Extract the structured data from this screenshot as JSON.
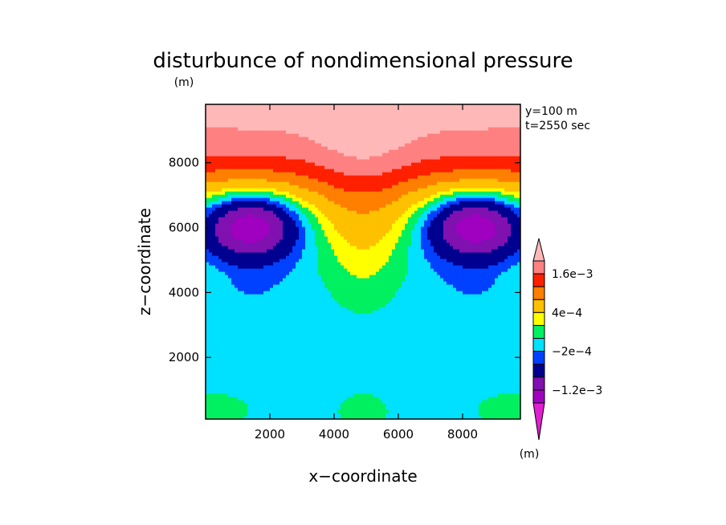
{
  "chart_data": {
    "type": "heatmap",
    "title": "disturbunce of nondimensional pressure",
    "xlabel": "x−coordinate",
    "ylabel": "z−coordinate",
    "y_unit": "(m)",
    "colorbar_unit": "(m)",
    "annotations": [
      "y=100 m",
      "t=2550 sec"
    ],
    "xlim": [
      0,
      9800
    ],
    "ylim": [
      100,
      9800
    ],
    "x_ticks": [
      2000,
      4000,
      6000,
      8000
    ],
    "x_tick_labels": [
      "2000",
      "4000",
      "6000",
      "8000"
    ],
    "y_ticks": [
      2000,
      4000,
      6000,
      8000
    ],
    "y_tick_labels": [
      "2000",
      "4000",
      "6000",
      "8000"
    ],
    "colorbar": {
      "levels": [
        -0.0016,
        -0.0012,
        -0.0008,
        -0.0004,
        -0.0002,
        0,
        0.0002,
        0.0004,
        0.0008,
        0.0012,
        0.0016,
        0.002
      ],
      "colors": [
        "#e020d0",
        "#a000c0",
        "#8010b0",
        "#000090",
        "#0040ff",
        "#00e0ff",
        "#00f060",
        "#ffff00",
        "#ffc000",
        "#ff7f00",
        "#ff2000",
        "#ff8080",
        "#ffb8b8"
      ],
      "labels": [
        {
          "level": 0.0016,
          "text": "1.6e−3"
        },
        {
          "level": 0.0004,
          "text": "4e−4"
        },
        {
          "level": -0.0002,
          "text": "−2e−4"
        },
        {
          "level": -0.0012,
          "text": "−1.2e−3"
        }
      ]
    },
    "grid": false,
    "legend_placement": "right"
  }
}
